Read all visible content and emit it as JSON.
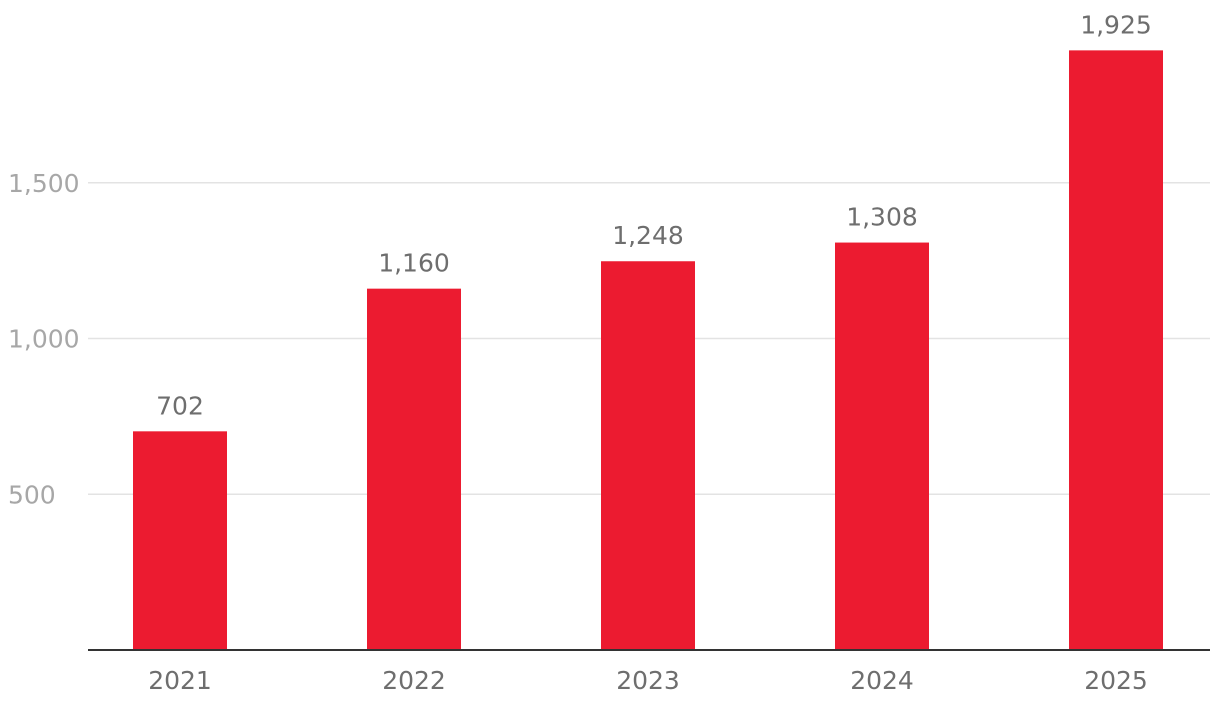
{
  "chart_data": {
    "type": "bar",
    "title": "",
    "xlabel": "",
    "ylabel": "",
    "categories": [
      "2021",
      "2022",
      "2023",
      "2024",
      "2025"
    ],
    "values": [
      702,
      1160,
      1248,
      1308,
      1925
    ],
    "value_labels": [
      "702",
      "1,160",
      "1,248",
      "1,308",
      "1,925"
    ],
    "yticks": [
      500,
      1000,
      1500
    ],
    "ytick_labels": [
      "500",
      "1,000",
      "1,500"
    ],
    "ylim": [
      0,
      2100
    ],
    "grid": true,
    "legend": "none",
    "bar_color": "#ec1b30"
  }
}
